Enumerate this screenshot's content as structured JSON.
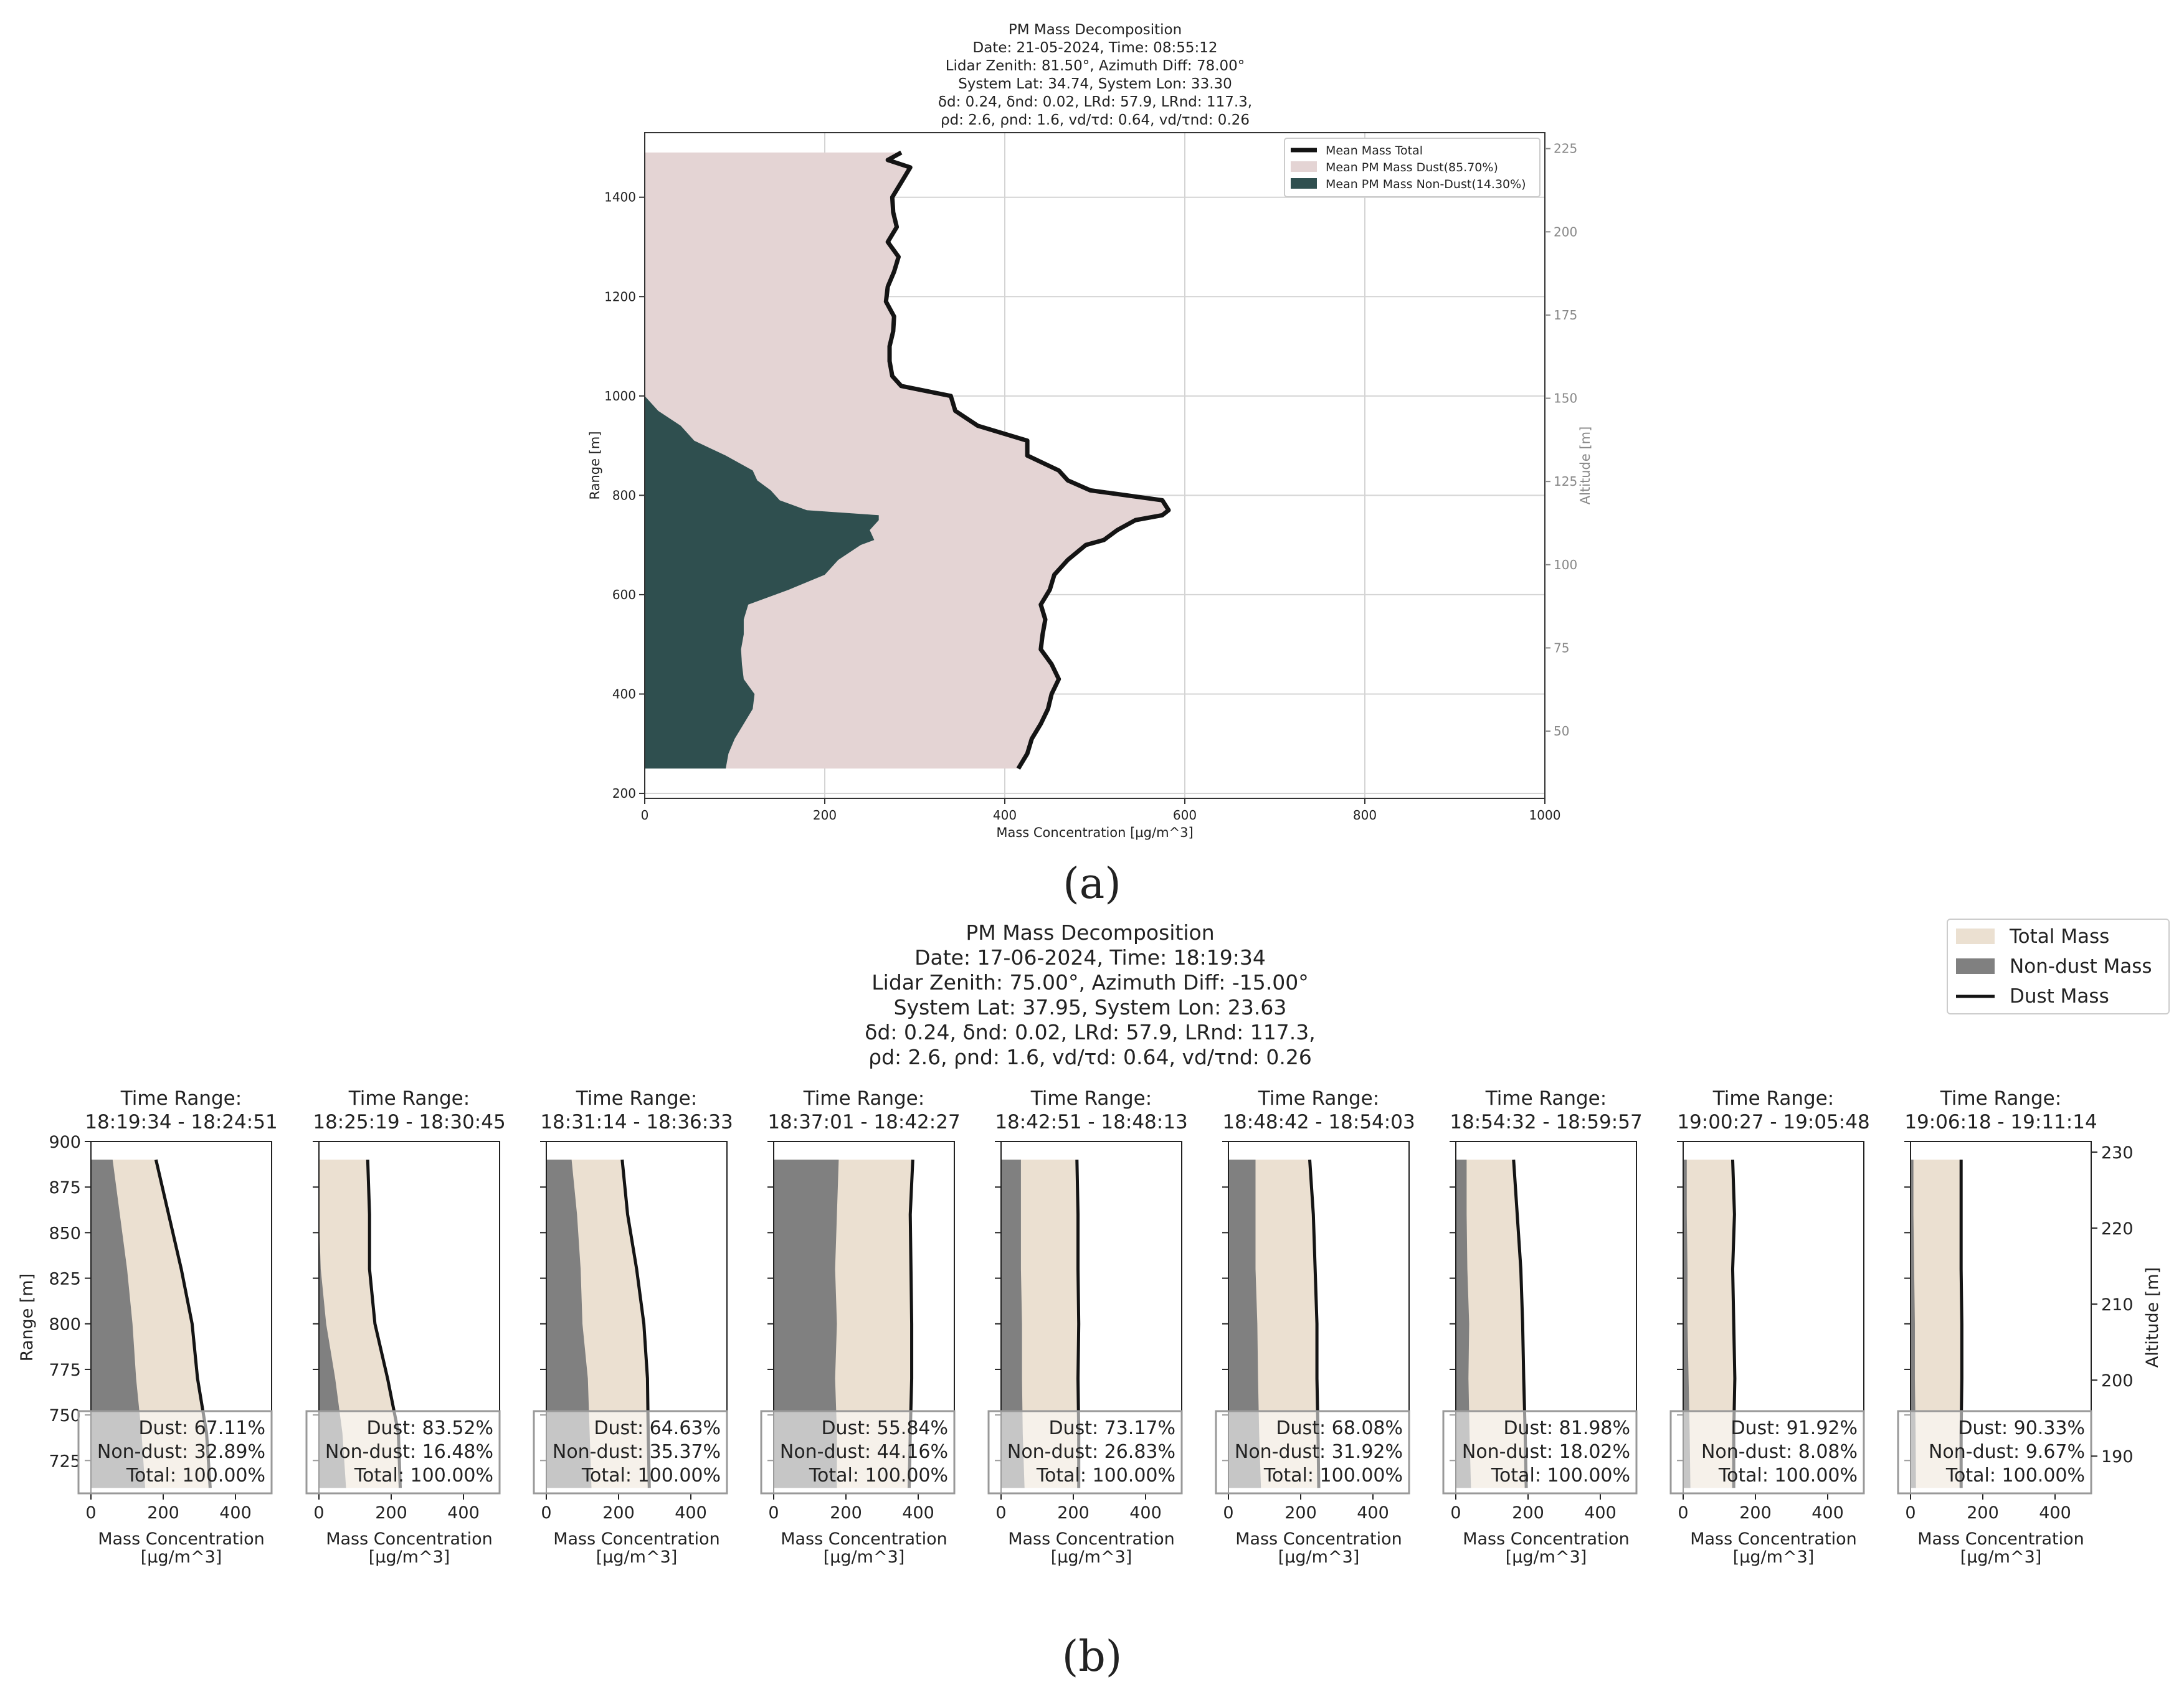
{
  "figure": {
    "panel_a_label": "(a)",
    "panel_b_label": "(b)"
  },
  "chart_data": [
    {
      "type": "area",
      "panel": "a",
      "title": [
        "PM Mass Decomposition",
        "Date: 21-05-2024, Time: 08:55:12",
        "Lidar Zenith: 81.50°, Azimuth Diff: 78.00°",
        "System Lat: 34.74, System Lon: 33.30",
        "δd: 0.24, δnd: 0.02, LRd: 57.9, LRnd: 117.3,",
        "ρd: 2.6, ρnd: 1.6, vd/τd: 0.64, vd/τnd: 0.26"
      ],
      "xlabel": "Mass Concentration [µg/m^3]",
      "ylabel": "Range [m]",
      "y2label": "Altitude [m]",
      "xlim": [
        0,
        1000
      ],
      "ylim": [
        190,
        1530
      ],
      "y2lim": [
        29.8,
        229.8
      ],
      "xticks": [
        0,
        200,
        400,
        600,
        800,
        1000
      ],
      "yticks": [
        200,
        400,
        600,
        800,
        1000,
        1200,
        1400
      ],
      "y2ticks": [
        50,
        75,
        100,
        125,
        150,
        175,
        200,
        225
      ],
      "grid": true,
      "legend_position": "top-right",
      "legend": [
        "Mean Mass Total",
        "Mean PM Mass Dust(85.70%)",
        "Mean PM Mass Non-Dust(14.30%)"
      ],
      "colors": {
        "total_line": "#141414",
        "dust_fill": "#e4d4d4",
        "nondust_fill": "#2f4f4f"
      },
      "range_m": [
        250,
        280,
        310,
        340,
        370,
        400,
        430,
        460,
        490,
        520,
        550,
        580,
        610,
        640,
        670,
        700,
        710,
        730,
        750,
        760,
        770,
        790,
        810,
        830,
        850,
        880,
        910,
        940,
        970,
        1000,
        1020,
        1040,
        1070,
        1100,
        1130,
        1160,
        1190,
        1220,
        1250,
        1280,
        1310,
        1340,
        1370,
        1400,
        1430,
        1460,
        1475,
        1490
      ],
      "total_mass": [
        415,
        425,
        430,
        440,
        448,
        452,
        460,
        452,
        440,
        442,
        445,
        440,
        450,
        455,
        470,
        490,
        510,
        525,
        545,
        575,
        582,
        575,
        495,
        470,
        460,
        425,
        425,
        370,
        345,
        340,
        285,
        275,
        272,
        272,
        276,
        277,
        268,
        270,
        277,
        282,
        270,
        280,
        276,
        275,
        285,
        295,
        270,
        285
      ],
      "nondust_mass": [
        90,
        93,
        100,
        110,
        120,
        122,
        110,
        108,
        107,
        110,
        110,
        115,
        160,
        200,
        215,
        240,
        255,
        250,
        260,
        260,
        180,
        150,
        140,
        125,
        120,
        90,
        55,
        40,
        15,
        0,
        0,
        0,
        0,
        0,
        0,
        0,
        0,
        0,
        0,
        0,
        0,
        0,
        0,
        0,
        0,
        0,
        0,
        0
      ]
    },
    {
      "type": "area",
      "panel": "b",
      "title": [
        "PM Mass Decomposition",
        "Date: 17-06-2024, Time: 18:19:34",
        "Lidar Zenith: 75.00°, Azimuth Diff: -15.00°",
        "System Lat: 37.95, System Lon: 23.63",
        "δd: 0.24, δnd: 0.02, LRd: 57.9, LRnd: 117.3,",
        "ρd: 2.6, ρnd: 1.6, vd/τd: 0.64, vd/τnd: 0.26"
      ],
      "legend_position": "top-right",
      "legend": [
        "Total Mass",
        "Non-dust Mass",
        "Dust Mass"
      ],
      "colors": {
        "total_fill": "#ebe0d1",
        "nondust_fill": "#808080",
        "dust_line": "#141414"
      },
      "subplot_title_prefix": "Time Range:",
      "xlabel": [
        "Mass Concentration",
        "[µg/m^3]"
      ],
      "ylabel": "Range [m]",
      "y2label": "Altitude [m]",
      "xlim": [
        0,
        500
      ],
      "ylim": [
        707,
        900
      ],
      "y2lim": [
        185.1,
        231.4
      ],
      "xticks": [
        0,
        200,
        400
      ],
      "yticks": [
        725,
        750,
        775,
        800,
        825,
        850,
        875,
        900
      ],
      "y2ticks": [
        190,
        200,
        210,
        220,
        230
      ],
      "range_m": [
        710,
        740,
        770,
        800,
        830,
        860,
        890
      ],
      "subplots": [
        {
          "time_range": "18:19:34 - 18:24:51",
          "total": [
            330,
            320,
            295,
            280,
            250,
            215,
            180
          ],
          "nondust": [
            150,
            140,
            125,
            115,
            100,
            80,
            60
          ],
          "dust_pct": "Dust: 67.11%",
          "nondust_pct": "Non-dust: 32.89%",
          "total_pct": "Total: 100.00%"
        },
        {
          "time_range": "18:25:19 - 18:30:45",
          "total": [
            225,
            220,
            190,
            155,
            140,
            140,
            135
          ],
          "nondust": [
            75,
            65,
            45,
            20,
            5,
            0,
            0
          ],
          "dust_pct": "Dust: 83.52%",
          "nondust_pct": "Non-dust: 16.48%",
          "total_pct": "Total: 100.00%"
        },
        {
          "time_range": "18:31:14 - 18:36:33",
          "total": [
            285,
            282,
            280,
            270,
            250,
            225,
            210
          ],
          "nondust": [
            125,
            120,
            115,
            100,
            95,
            85,
            70
          ],
          "dust_pct": "Dust: 64.63%",
          "nondust_pct": "Non-dust: 35.37%",
          "total_pct": "Total: 100.00%"
        },
        {
          "time_range": "18:37:01 - 18:42:27",
          "total": [
            375,
            378,
            382,
            382,
            380,
            378,
            385
          ],
          "nondust": [
            175,
            175,
            170,
            175,
            170,
            175,
            180
          ],
          "dust_pct": "Dust: 55.84%",
          "nondust_pct": "Non-dust: 44.16%",
          "total_pct": "Total: 100.00%"
        },
        {
          "time_range": "18:42:51 - 18:48:13",
          "total": [
            215,
            215,
            213,
            215,
            213,
            213,
            210
          ],
          "nondust": [
            65,
            60,
            58,
            58,
            55,
            55,
            55
          ],
          "dust_pct": "Dust: 73.17%",
          "nondust_pct": "Non-dust: 26.83%",
          "total_pct": "Total: 100.00%"
        },
        {
          "time_range": "18:48:42 - 18:54:03",
          "total": [
            250,
            248,
            245,
            245,
            240,
            235,
            225
          ],
          "nondust": [
            90,
            85,
            82,
            80,
            75,
            75,
            75
          ],
          "dust_pct": "Dust: 68.08%",
          "nondust_pct": "Non-dust: 31.92%",
          "total_pct": "Total: 100.00%"
        },
        {
          "time_range": "18:54:32 - 18:59:57",
          "total": [
            195,
            192,
            188,
            185,
            180,
            170,
            160
          ],
          "nondust": [
            42,
            38,
            35,
            37,
            32,
            30,
            30
          ],
          "dust_pct": "Dust: 81.98%",
          "nondust_pct": "Non-dust: 18.02%",
          "total_pct": "Total: 100.00%"
        },
        {
          "time_range": "19:00:27 - 19:05:48",
          "total": [
            140,
            140,
            143,
            140,
            137,
            142,
            137
          ],
          "nondust": [
            20,
            18,
            15,
            12,
            12,
            10,
            10
          ],
          "dust_pct": "Dust: 91.92%",
          "nondust_pct": "Non-dust: 8.08%",
          "total_pct": "Total: 100.00%"
        },
        {
          "time_range": "19:06:18 - 19:11:14",
          "total": [
            140,
            140,
            142,
            142,
            140,
            140,
            140
          ],
          "nondust": [
            15,
            14,
            12,
            12,
            10,
            8,
            8
          ],
          "dust_pct": "Dust: 90.33%",
          "nondust_pct": "Non-dust: 9.67%",
          "total_pct": "Total: 100.00%"
        }
      ]
    }
  ]
}
